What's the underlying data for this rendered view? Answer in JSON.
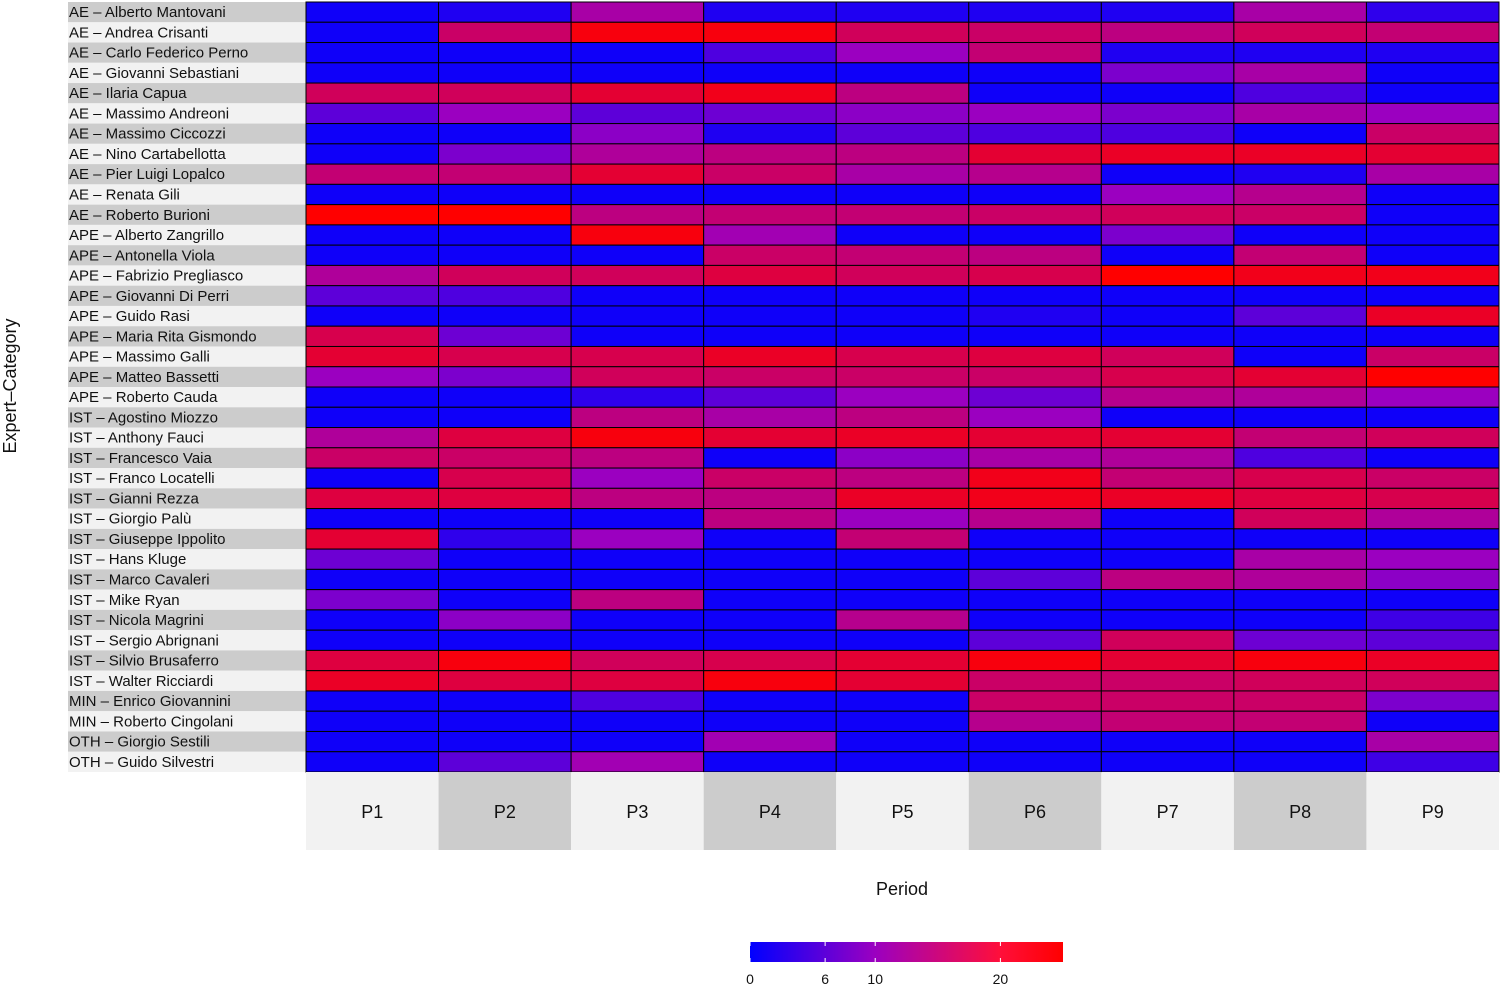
{
  "chart_data": {
    "type": "heatmap",
    "xlabel": "Period",
    "ylabel": "Expert–Category",
    "columns": [
      "P1",
      "P2",
      "P3",
      "P4",
      "P5",
      "P6",
      "P7",
      "P8",
      "P9"
    ],
    "rows": [
      "AE – Alberto Mantovani",
      "AE – Andrea Crisanti",
      "AE – Carlo Federico Perno",
      "AE – Giovanni Sebastiani",
      "AE – Ilaria Capua",
      "AE – Massimo Andreoni",
      "AE – Massimo Ciccozzi",
      "AE – Nino Cartabellotta",
      "AE – Pier Luigi Lopalco",
      "AE – Renata Gili",
      "AE – Roberto Burioni",
      "APE – Alberto Zangrillo",
      "APE – Antonella Viola",
      "APE – Fabrizio Pregliasco",
      "APE – Giovanni Di Perri",
      "APE – Guido Rasi",
      "APE – Maria Rita Gismondo",
      "APE – Massimo Galli",
      "APE – Matteo Bassetti",
      "APE – Roberto Cauda",
      "IST – Agostino Miozzo",
      "IST – Anthony Fauci",
      "IST – Francesco Vaia",
      "IST – Franco Locatelli",
      "IST – Gianni Rezza",
      "IST – Giorgio Palù",
      "IST – Giuseppe Ippolito",
      "IST – Hans Kluge",
      "IST – Marco Cavaleri",
      "IST – Mike Ryan",
      "IST – Nicola Magrini",
      "IST – Sergio Abrignani",
      "IST – Silvio Brusaferro",
      "IST – Walter Ricciardi",
      "MIN – Enrico Giovannini",
      "MIN – Roberto Cingolani",
      "OTH – Giorgio Sestili",
      "OTH – Guido Silvestri"
    ],
    "values": [
      [
        1,
        2,
        12,
        2,
        2,
        2,
        2,
        12,
        3
      ],
      [
        1,
        17,
        24,
        24,
        18,
        17,
        15,
        18,
        16
      ],
      [
        1,
        1,
        1,
        5,
        10,
        16,
        2,
        2,
        2
      ],
      [
        1,
        1,
        1,
        1,
        1,
        1,
        8,
        12,
        1
      ],
      [
        18,
        18,
        21,
        23,
        15,
        1,
        1,
        5,
        1
      ],
      [
        6,
        10,
        6,
        7,
        9,
        10,
        8,
        12,
        10
      ],
      [
        1,
        1,
        9,
        2,
        6,
        5,
        5,
        1,
        17
      ],
      [
        1,
        8,
        13,
        15,
        15,
        21,
        22,
        22,
        21
      ],
      [
        16,
        16,
        21,
        17,
        12,
        14,
        1,
        2,
        12
      ],
      [
        1,
        1,
        1,
        1,
        1,
        1,
        10,
        14,
        1
      ],
      [
        25,
        25,
        15,
        16,
        16,
        17,
        18,
        17,
        1
      ],
      [
        1,
        1,
        24,
        11,
        1,
        1,
        8,
        1,
        1
      ],
      [
        1,
        1,
        1,
        17,
        16,
        15,
        1,
        16,
        1
      ],
      [
        13,
        18,
        18,
        20,
        18,
        19,
        25,
        23,
        23
      ],
      [
        6,
        5,
        1,
        1,
        1,
        1,
        1,
        1,
        1
      ],
      [
        1,
        1,
        1,
        1,
        1,
        2,
        1,
        6,
        22
      ],
      [
        19,
        7,
        1,
        1,
        1,
        1,
        1,
        1,
        1
      ],
      [
        21,
        19,
        19,
        22,
        19,
        20,
        18,
        1,
        17
      ],
      [
        10,
        8,
        18,
        17,
        17,
        17,
        19,
        21,
        25
      ],
      [
        1,
        1,
        3,
        6,
        10,
        7,
        14,
        13,
        10
      ],
      [
        1,
        1,
        15,
        12,
        15,
        10,
        1,
        1,
        1
      ],
      [
        13,
        20,
        24,
        21,
        22,
        21,
        21,
        16,
        18
      ],
      [
        17,
        17,
        15,
        1,
        9,
        12,
        13,
        5,
        1
      ],
      [
        1,
        19,
        10,
        17,
        15,
        23,
        16,
        19,
        17
      ],
      [
        20,
        20,
        15,
        15,
        22,
        23,
        22,
        20,
        19
      ],
      [
        1,
        1,
        1,
        15,
        10,
        14,
        1,
        18,
        13
      ],
      [
        21,
        3,
        10,
        1,
        16,
        1,
        1,
        1,
        1
      ],
      [
        7,
        1,
        1,
        1,
        1,
        1,
        1,
        12,
        10
      ],
      [
        1,
        1,
        1,
        1,
        1,
        6,
        15,
        13,
        9
      ],
      [
        8,
        1,
        15,
        1,
        1,
        1,
        1,
        1,
        1
      ],
      [
        1,
        9,
        1,
        1,
        14,
        1,
        1,
        1,
        4
      ],
      [
        1,
        1,
        1,
        1,
        1,
        6,
        18,
        7,
        6
      ],
      [
        20,
        24,
        18,
        19,
        21,
        24,
        21,
        24,
        22
      ],
      [
        22,
        20,
        20,
        24,
        21,
        17,
        17,
        18,
        18
      ],
      [
        1,
        1,
        5,
        1,
        1,
        17,
        17,
        17,
        8
      ],
      [
        1,
        1,
        1,
        1,
        1,
        14,
        16,
        16,
        1
      ],
      [
        1,
        1,
        1,
        11,
        1,
        1,
        1,
        1,
        12
      ],
      [
        1,
        6,
        11,
        1,
        1,
        1,
        1,
        1,
        4
      ]
    ],
    "colorscale": {
      "min": 0,
      "max": 25,
      "low_color": "#0000ff",
      "mid_color": "#9b00c0",
      "high_color": "#ff0000",
      "ticks": [
        0,
        6,
        10,
        20
      ]
    },
    "legend": "bottom-center"
  }
}
